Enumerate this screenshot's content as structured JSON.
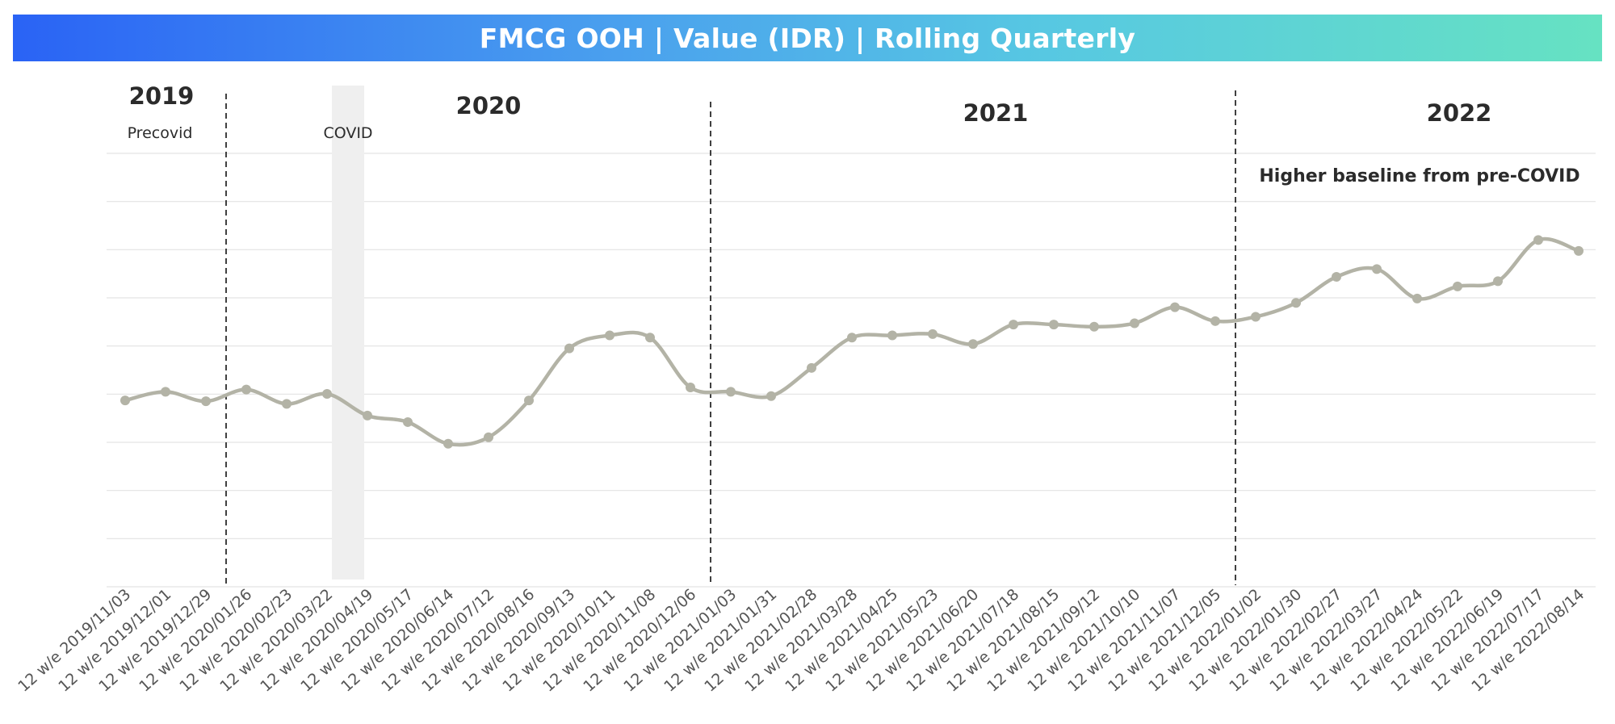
{
  "chart_data": {
    "type": "line",
    "title": "FMCG OOH | Value (IDR) | Rolling Quarterly",
    "xlabel": "",
    "ylabel": "",
    "ylim": [
      0,
      100
    ],
    "grid": true,
    "y_tick_labels_visible": false,
    "x": [
      "12 w/e 2019/11/03",
      "12 w/e 2019/12/01",
      "12 w/e 2019/12/29",
      "12 w/e 2020/01/26",
      "12 w/e 2020/02/23",
      "12 w/e 2020/03/22",
      "12 w/e 2020/04/19",
      "12 w/e 2020/05/17",
      "12 w/e 2020/06/14",
      "12 w/e 2020/07/12",
      "12 w/e 2020/08/16",
      "12 w/e 2020/09/13",
      "12 w/e 2020/10/11",
      "12 w/e 2020/11/08",
      "12 w/e 2020/12/06",
      "12 w/e 2021/01/03",
      "12 w/e 2021/01/31",
      "12 w/e 2021/02/28",
      "12 w/e 2021/03/28",
      "12 w/e 2021/04/25",
      "12 w/e 2021/05/23",
      "12 w/e 2021/06/20",
      "12 w/e 2021/07/18",
      "12 w/e 2021/08/15",
      "12 w/e 2021/09/12",
      "12 w/e 2021/10/10",
      "12 w/e 2021/11/07",
      "12 w/e 2021/12/05",
      "12 w/e 2022/01/02",
      "12 w/e 2022/01/30",
      "12 w/e 2022/02/27",
      "12 w/e 2022/03/27",
      "12 w/e 2022/04/24",
      "12 w/e 2022/05/22",
      "12 w/e 2022/06/19",
      "12 w/e 2022/07/17",
      "12 w/e 2022/08/14"
    ],
    "series": [
      {
        "name": "",
        "color": "#b3b3a6",
        "values": [
          43,
          45,
          42.8,
          45.5,
          42.2,
          44.5,
          39.5,
          38,
          33,
          34.5,
          43,
          55,
          58,
          57.5,
          46,
          45,
          44,
          50.5,
          57.5,
          58,
          58.3,
          56,
          60.5,
          60.5,
          60,
          60.8,
          64.5,
          61.3,
          62.3,
          65.5,
          71.5,
          73.3,
          66.5,
          69.3,
          70.5,
          80,
          77.5
        ]
      }
    ],
    "period_dividers": [
      {
        "after": "12 w/e 2019/12/29",
        "style": "dashed"
      },
      {
        "after": "12 w/e 2020/12/06",
        "style": "dashed"
      },
      {
        "after": "12 w/e 2021/12/05",
        "style": "dashed"
      }
    ],
    "shaded_band": {
      "label": "COVID",
      "around": "12 w/e 2020/03/22"
    },
    "periods": [
      {
        "year": "2019",
        "sub": "Precovid"
      },
      {
        "year": "2020",
        "sub": "COVID"
      },
      {
        "year": "2021",
        "sub": ""
      },
      {
        "year": "2022",
        "sub": ""
      }
    ],
    "annotation": "Higher baseline from pre-COVID"
  }
}
